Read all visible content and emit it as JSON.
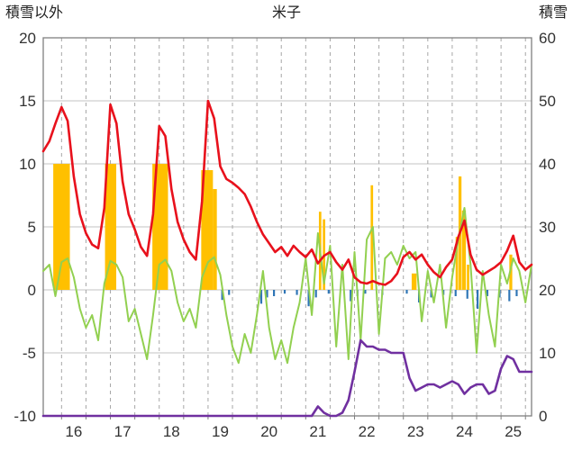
{
  "chart_data": {
    "type": "line",
    "title": "米子",
    "left_axis": {
      "label": "積雪以外",
      "min": -10,
      "max": 20,
      "ticks": [
        20,
        15,
        10,
        5,
        0,
        -5,
        -10
      ]
    },
    "right_axis": {
      "label": "積雪",
      "min": 0,
      "max": 60,
      "ticks": [
        60,
        50,
        40,
        30,
        20,
        10,
        0
      ]
    },
    "x_axis": {
      "min": 15.625,
      "max": 25.625,
      "tick_values": [
        16,
        17,
        18,
        19,
        20,
        21,
        22,
        23,
        24,
        25
      ],
      "tick_labels": [
        "16",
        "17",
        "18",
        "19",
        "20",
        "21",
        "22",
        "23",
        "24",
        "25"
      ],
      "label_offset": 0.25,
      "gridline_step": 0.5
    },
    "grid_color": "#c3c3c3",
    "vgrid_color": "#a6a6a6",
    "frame_color": "#7f7f7f",
    "x_start": 15.625,
    "x_step": 0.125,
    "series": [
      {
        "name": "green-line",
        "axis": "left",
        "color": "#92d050",
        "width": 2,
        "values": [
          1.5,
          2.0,
          -0.5,
          2.2,
          2.5,
          1.0,
          -1.5,
          -3.0,
          -2.0,
          -4.0,
          0.5,
          2.3,
          2.0,
          1.0,
          -2.5,
          -1.5,
          -3.5,
          -5.5,
          -2.0,
          2.0,
          2.4,
          1.5,
          -1.0,
          -2.5,
          -1.5,
          -3.0,
          1.0,
          2.2,
          2.6,
          1.2,
          -2.0,
          -4.5,
          -5.8,
          -3.5,
          -5.0,
          -2.0,
          1.5,
          -3.0,
          -5.5,
          -4.0,
          -5.8,
          -3.0,
          -1.0,
          2.5,
          -2.0,
          4.5,
          0.5,
          3.5,
          -4.5,
          2.0,
          -5.5,
          3.0,
          -4.0,
          4.0,
          5.0,
          -3.5,
          2.5,
          3.0,
          2.0,
          3.5,
          2.5,
          3.0,
          -2.5,
          1.5,
          -1.0,
          2.0,
          -3.0,
          1.0,
          4.0,
          6.5,
          2.0,
          -5.0,
          1.5,
          -2.0,
          -4.5,
          2.0,
          0.5,
          2.5,
          1.5,
          -1.0,
          2.0
        ]
      },
      {
        "name": "red-line",
        "axis": "left",
        "color": "#e8111c",
        "width": 2.6,
        "values": [
          11.0,
          11.8,
          13.2,
          14.5,
          13.4,
          9.0,
          6.0,
          4.5,
          3.6,
          3.3,
          6.5,
          14.7,
          13.2,
          8.6,
          6.0,
          4.8,
          3.4,
          2.7,
          6.0,
          13.0,
          12.2,
          8.0,
          5.4,
          4.0,
          3.0,
          2.4,
          7.0,
          15.0,
          13.6,
          9.8,
          8.8,
          8.5,
          8.1,
          7.6,
          6.6,
          5.4,
          4.4,
          3.7,
          3.0,
          3.4,
          2.7,
          3.5,
          3.0,
          2.6,
          3.2,
          2.1,
          2.7,
          3.0,
          2.2,
          1.6,
          2.4,
          1.0,
          0.6,
          0.5,
          0.7,
          0.5,
          0.4,
          0.7,
          1.3,
          2.6,
          3.0,
          2.4,
          2.8,
          2.0,
          1.4,
          1.0,
          1.8,
          2.4,
          4.2,
          5.5,
          2.8,
          1.6,
          1.2,
          1.5,
          1.8,
          2.2,
          3.1,
          4.3,
          2.2,
          1.6,
          2.0
        ]
      },
      {
        "name": "purple-line",
        "axis": "right",
        "color": "#7030a0",
        "width": 2.6,
        "values": [
          0,
          0,
          0,
          0,
          0,
          0,
          0,
          0,
          0,
          0,
          0,
          0,
          0,
          0,
          0,
          0,
          0,
          0,
          0,
          0,
          0,
          0,
          0,
          0,
          0,
          0,
          0,
          0,
          0,
          0,
          0,
          0,
          0,
          0,
          0,
          0,
          0,
          0,
          0,
          0,
          0,
          0,
          0,
          0,
          0,
          1.5,
          0.5,
          0,
          0,
          0.5,
          2.5,
          7,
          12,
          11,
          11,
          10.5,
          10.5,
          10,
          10,
          10,
          6,
          4,
          4.5,
          5,
          5,
          4.5,
          5,
          5.5,
          5,
          3.5,
          4.5,
          5,
          5,
          3.5,
          4,
          7.5,
          9.5,
          9,
          7,
          7,
          7
        ]
      }
    ],
    "bars": [
      {
        "name": "orange-bars",
        "axis": "left",
        "color": "#ffc000",
        "rects": [
          {
            "x": 15.83,
            "w": 0.34,
            "v": 10
          },
          {
            "x": 16.89,
            "w": 0.23,
            "v": 10
          },
          {
            "x": 17.86,
            "w": 0.32,
            "v": 10
          },
          {
            "x": 18.86,
            "w": 0.24,
            "v": 9.5
          },
          {
            "x": 19.1,
            "w": 0.08,
            "v": 8
          },
          {
            "x": 21.27,
            "w": 0.05,
            "v": 6.2
          },
          {
            "x": 21.35,
            "w": 0.05,
            "v": 5.6
          },
          {
            "x": 22.33,
            "w": 0.05,
            "v": 8.3
          },
          {
            "x": 23.17,
            "w": 0.1,
            "v": 1.3
          },
          {
            "x": 24.07,
            "w": 0.05,
            "v": 4.2
          },
          {
            "x": 24.13,
            "w": 0.06,
            "v": 9
          },
          {
            "x": 24.2,
            "w": 0.08,
            "v": 6.3
          },
          {
            "x": 24.3,
            "w": 0.05,
            "v": 2
          },
          {
            "x": 25.17,
            "w": 0.06,
            "v": 2.8
          }
        ]
      },
      {
        "name": "blue-bars",
        "axis": "left",
        "color": "#2e75b6",
        "rects": [
          {
            "x": 19.27,
            "w": 0.04,
            "v": -0.8
          },
          {
            "x": 19.41,
            "w": 0.04,
            "v": -0.4
          },
          {
            "x": 20.07,
            "w": 0.04,
            "v": -1.1
          },
          {
            "x": 20.19,
            "w": 0.04,
            "v": -0.6
          },
          {
            "x": 20.33,
            "w": 0.04,
            "v": -0.5
          },
          {
            "x": 20.55,
            "w": 0.04,
            "v": -0.3
          },
          {
            "x": 20.8,
            "w": 0.04,
            "v": -0.4
          },
          {
            "x": 21.04,
            "w": 0.04,
            "v": -1.3
          },
          {
            "x": 21.19,
            "w": 0.04,
            "v": -0.6
          },
          {
            "x": 21.45,
            "w": 0.04,
            "v": -0.3
          },
          {
            "x": 21.9,
            "w": 0.04,
            "v": -0.9
          },
          {
            "x": 22.04,
            "w": 0.04,
            "v": -0.5
          },
          {
            "x": 22.2,
            "w": 0.04,
            "v": -0.3
          },
          {
            "x": 22.55,
            "w": 0.04,
            "v": -0.4
          },
          {
            "x": 23.05,
            "w": 0.04,
            "v": -0.3
          },
          {
            "x": 23.3,
            "w": 0.04,
            "v": -1.0
          },
          {
            "x": 23.55,
            "w": 0.04,
            "v": -0.6
          },
          {
            "x": 23.8,
            "w": 0.04,
            "v": -0.4
          },
          {
            "x": 24.05,
            "w": 0.04,
            "v": -0.5
          },
          {
            "x": 24.29,
            "w": 0.04,
            "v": -0.7
          },
          {
            "x": 24.5,
            "w": 0.04,
            "v": -1.5
          },
          {
            "x": 24.7,
            "w": 0.04,
            "v": -0.5
          },
          {
            "x": 24.95,
            "w": 0.04,
            "v": -0.6
          },
          {
            "x": 25.15,
            "w": 0.04,
            "v": -0.9
          },
          {
            "x": 25.3,
            "w": 0.04,
            "v": -0.5
          }
        ]
      }
    ]
  }
}
